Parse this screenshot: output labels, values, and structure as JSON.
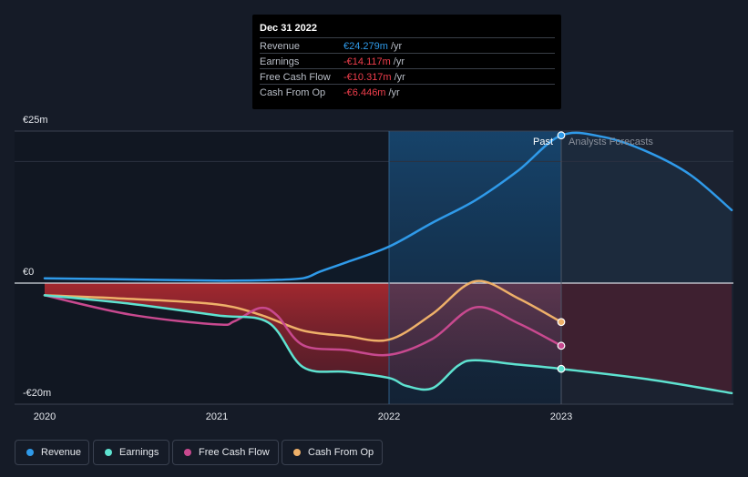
{
  "tooltip": {
    "date": "Dec 31 2022",
    "rows": [
      {
        "label": "Revenue",
        "value": "€24.279m",
        "unit": "/yr",
        "color": "#2f9ae9"
      },
      {
        "label": "Earnings",
        "value": "-€14.117m",
        "unit": "/yr",
        "color": "#f03e4c"
      },
      {
        "label": "Free Cash Flow",
        "value": "-€10.317m",
        "unit": "/yr",
        "color": "#f03e4c"
      },
      {
        "label": "Cash From Op",
        "value": "-€6.446m",
        "unit": "/yr",
        "color": "#f03e4c"
      }
    ]
  },
  "labels": {
    "past": "Past",
    "forecast": "Analysts Forecasts"
  },
  "legend": [
    {
      "label": "Revenue",
      "color": "#2f9ae9"
    },
    {
      "label": "Earnings",
      "color": "#5ee2d0"
    },
    {
      "label": "Free Cash Flow",
      "color": "#c8498f"
    },
    {
      "label": "Cash From Op",
      "color": "#eeb069"
    }
  ],
  "chart_data": {
    "type": "line",
    "y_ticks": [
      "€25m",
      "€0",
      "-€20m"
    ],
    "x_ticks": [
      "2020",
      "2021",
      "2022",
      "2023"
    ],
    "ylim": [
      -20,
      25
    ],
    "xlim": [
      2020.0,
      2023.99
    ],
    "past_end": 2023.0,
    "highlight_start": 2022.0,
    "series": [
      {
        "name": "Revenue",
        "color": "#2f9ae9",
        "points": [
          [
            2020.0,
            0.8
          ],
          [
            2020.5,
            0.6
          ],
          [
            2021.0,
            0.4
          ],
          [
            2021.3,
            0.5
          ],
          [
            2021.5,
            0.8
          ],
          [
            2021.6,
            1.9
          ],
          [
            2021.75,
            3.4
          ],
          [
            2022.0,
            6.0
          ],
          [
            2022.25,
            9.9
          ],
          [
            2022.5,
            13.6
          ],
          [
            2022.75,
            18.5
          ],
          [
            2023.0,
            24.3
          ],
          [
            2023.25,
            24.0
          ],
          [
            2023.5,
            21.6
          ],
          [
            2023.75,
            17.8
          ],
          [
            2023.99,
            12.0
          ]
        ]
      },
      {
        "name": "Earnings",
        "color": "#5ee2d0",
        "points": [
          [
            2020.0,
            -2.0
          ],
          [
            2020.5,
            -3.4
          ],
          [
            2021.0,
            -5.3
          ],
          [
            2021.3,
            -6.5
          ],
          [
            2021.5,
            -13.8
          ],
          [
            2021.75,
            -14.6
          ],
          [
            2022.0,
            -15.6
          ],
          [
            2022.1,
            -16.9
          ],
          [
            2022.25,
            -17.3
          ],
          [
            2022.4,
            -13.6
          ],
          [
            2022.5,
            -12.7
          ],
          [
            2022.75,
            -13.4
          ],
          [
            2023.0,
            -14.1
          ],
          [
            2023.5,
            -15.8
          ],
          [
            2023.99,
            -18.1
          ]
        ]
      },
      {
        "name": "Free Cash Flow",
        "color": "#c8498f",
        "points": [
          [
            2020.0,
            -2.0
          ],
          [
            2020.5,
            -5.2
          ],
          [
            2021.0,
            -6.8
          ],
          [
            2021.1,
            -6.3
          ],
          [
            2021.25,
            -4.1
          ],
          [
            2021.35,
            -5.3
          ],
          [
            2021.5,
            -10.2
          ],
          [
            2021.75,
            -11.0
          ],
          [
            2022.0,
            -11.8
          ],
          [
            2022.25,
            -9.2
          ],
          [
            2022.5,
            -4.0
          ],
          [
            2022.75,
            -6.6
          ],
          [
            2023.0,
            -10.3
          ]
        ]
      },
      {
        "name": "Cash From Op",
        "color": "#eeb069",
        "points": [
          [
            2020.0,
            -2.0
          ],
          [
            2020.5,
            -2.6
          ],
          [
            2021.0,
            -3.5
          ],
          [
            2021.25,
            -5.2
          ],
          [
            2021.5,
            -7.8
          ],
          [
            2021.75,
            -8.7
          ],
          [
            2022.0,
            -9.3
          ],
          [
            2022.25,
            -5.1
          ],
          [
            2022.5,
            0.3
          ],
          [
            2022.75,
            -2.5
          ],
          [
            2023.0,
            -6.4
          ]
        ]
      }
    ]
  }
}
